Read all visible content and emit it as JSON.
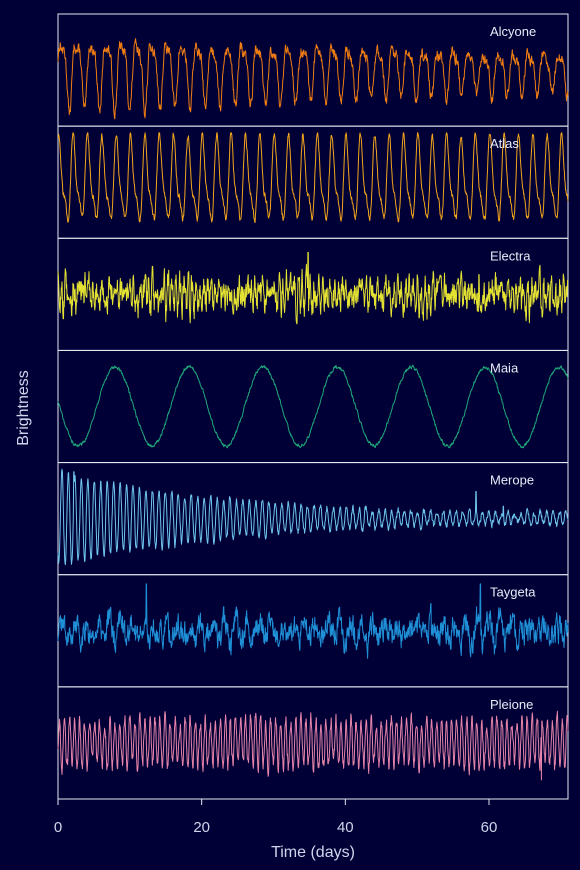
{
  "chart_data": {
    "type": "line",
    "title": "",
    "xlabel": "Time (days)",
    "ylabel": "Brightness",
    "xlim": [
      0,
      71
    ],
    "xticks": [
      0,
      20,
      40,
      60
    ],
    "grid": false,
    "background": "#000037",
    "axis_color": "#e6e9f2",
    "series": [
      {
        "name": "Alcyone",
        "color": "#ef7d12",
        "period_days": 2.1,
        "amplitude": 0.65,
        "amplitude_trend": "decreasing",
        "noise": 0.14,
        "spikes": []
      },
      {
        "name": "Atlas",
        "color": "#f3a51b",
        "period_days": 2.0,
        "amplitude": 0.75,
        "amplitude_trend": "constant",
        "noise": 0.08,
        "spikes": []
      },
      {
        "name": "Electra",
        "color": "#e3e132",
        "period_days": 0.55,
        "amplitude": 0.25,
        "amplitude_trend": "irregular",
        "noise": 0.35,
        "spikes": [
          {
            "x": 34.8,
            "y": 0.85
          },
          {
            "x": 58.6,
            "y": 0.4
          }
        ]
      },
      {
        "name": "Maia",
        "color": "#1fa77a",
        "period_days": 10.3,
        "amplitude": 0.8,
        "amplitude_trend": "constant",
        "noise": 0.04,
        "spikes": []
      },
      {
        "name": "Merope",
        "color": "#6fc6ec",
        "period_days": 0.9,
        "amplitude": 0.95,
        "amplitude_trend": "decaying",
        "noise": 0.08,
        "spikes": [
          {
            "x": 2.2,
            "y": 0.95
          },
          {
            "x": 58.2,
            "y": 0.55
          },
          {
            "x": 62.0,
            "y": 0.25
          }
        ]
      },
      {
        "name": "Taygeta",
        "color": "#1f8fd6",
        "period_days": 1.6,
        "amplitude": 0.25,
        "amplitude_trend": "irregular",
        "noise": 0.3,
        "spikes": [
          {
            "x": 12.3,
            "y": 0.95
          },
          {
            "x": 51.9,
            "y": 0.55
          },
          {
            "x": 58.8,
            "y": 0.95
          }
        ]
      },
      {
        "name": "Pleione",
        "color": "#e584a8",
        "period_days": 0.7,
        "amplitude": 0.45,
        "amplitude_trend": "constant",
        "noise": 0.18,
        "spikes": [
          {
            "x": 67.3,
            "y": -0.75
          }
        ]
      }
    ]
  }
}
